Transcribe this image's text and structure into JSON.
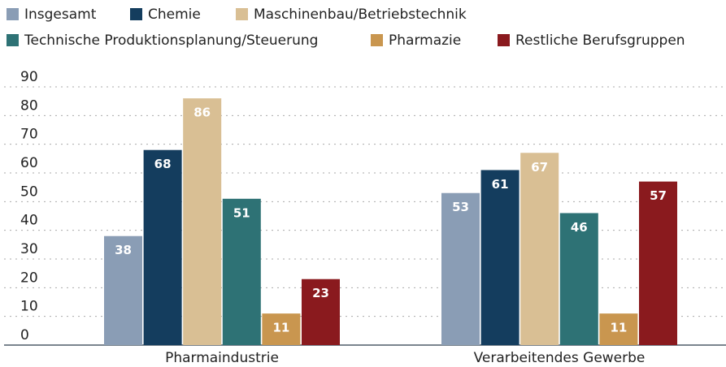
{
  "chart_data": {
    "type": "bar",
    "categories": [
      "Pharmaindustrie",
      "Verarbeitendes Gewerbe"
    ],
    "series": [
      {
        "name": "Insgesamt",
        "color": "#8a9db5",
        "values": [
          38,
          53
        ]
      },
      {
        "name": "Chemie",
        "color": "#143d5e",
        "values": [
          68,
          61
        ]
      },
      {
        "name": "Maschinenbau/Betriebstechnik",
        "color": "#d9bf94",
        "values": [
          86,
          67
        ]
      },
      {
        "name": "Technische Produktionsplanung/Steuerung",
        "color": "#2e7275",
        "values": [
          51,
          46
        ]
      },
      {
        "name": "Pharmazie",
        "color": "#c9964f",
        "values": [
          11,
          11
        ]
      },
      {
        "name": "Restliche Berufsgruppen",
        "color": "#8a1a1e",
        "values": [
          23,
          57
        ]
      }
    ],
    "ylim": [
      0,
      90
    ],
    "yticks": [
      0,
      10,
      20,
      30,
      40,
      50,
      60,
      70,
      80,
      90
    ],
    "grid": true,
    "legend": "top"
  }
}
